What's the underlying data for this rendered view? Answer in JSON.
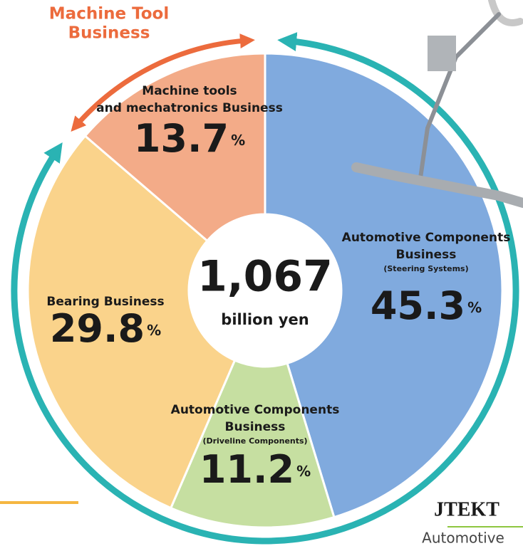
{
  "chart_data": {
    "type": "donut",
    "annotation": [
      "Machine Tool",
      "Business"
    ],
    "categories": [
      [
        "Automotive Components",
        "Business"
      ],
      [
        "Automotive Components",
        "Business"
      ],
      [
        "Bearing Business"
      ],
      [
        "Machine tools",
        "and mechatronics Business"
      ]
    ],
    "subnotes": [
      "(Steering Systems)",
      "(Driveline Components)",
      null,
      null
    ],
    "values": [
      45.3,
      11.2,
      29.8,
      13.7
    ],
    "unit": "%",
    "colors": [
      "#80aade",
      "#c6dfa1",
      "#fad38b",
      "#f3ab88"
    ],
    "center_label": "1,067",
    "center_sublabel": "billion yen",
    "logo": "JTEKT",
    "logo_subtitle": "Automotive"
  }
}
